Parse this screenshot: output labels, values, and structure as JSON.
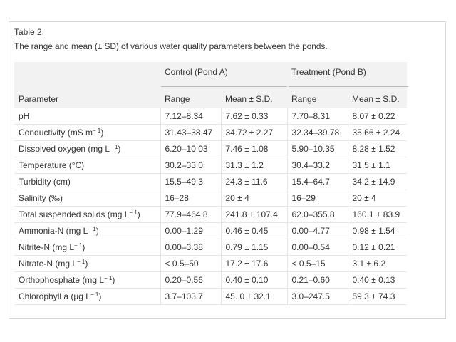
{
  "caption": {
    "label": "Table 2.",
    "text": "The range and mean (± SD) of various water quality parameters between the ponds."
  },
  "table": {
    "groups": [
      "Control (Pond A)",
      "Treatment (Pond B)"
    ],
    "columns": [
      "Parameter",
      "Range",
      "Mean ± S.D.",
      "Range",
      "Mean ± S.D."
    ],
    "rows": [
      {
        "param": "pH",
        "unit_sup": "",
        "unit_close": "",
        "a_range": "7.12–8.34",
        "a_mean": "7.62 ± 0.33",
        "b_range": "7.70–8.31",
        "b_mean": "8.07 ± 0.22"
      },
      {
        "param": "Conductivity (mS m",
        "unit_sup": "− 1",
        "unit_close": ")",
        "a_range": "31.43–38.47",
        "a_mean": "34.72 ± 2.27",
        "b_range": "32.34–39.78",
        "b_mean": "35.66 ± 2.24"
      },
      {
        "param": "Dissolved oxygen (mg L",
        "unit_sup": "− 1",
        "unit_close": ")",
        "a_range": "6.20–10.03",
        "a_mean": "7.46 ± 1.08",
        "b_range": "5.90–10.35",
        "b_mean": "8.28 ± 1.52"
      },
      {
        "param": "Temperature (°C)",
        "unit_sup": "",
        "unit_close": "",
        "a_range": "30.2–33.0",
        "a_mean": "31.3 ± 1.2",
        "b_range": "30.4–33.2",
        "b_mean": "31.5 ± 1.1"
      },
      {
        "param": "Turbidity (cm)",
        "unit_sup": "",
        "unit_close": "",
        "a_range": "15.5–49.3",
        "a_mean": "24.3 ± 11.6",
        "b_range": "15.4–64.7",
        "b_mean": "34.2 ± 14.9"
      },
      {
        "param": "Salinity (‰)",
        "unit_sup": "",
        "unit_close": "",
        "a_range": "16–28",
        "a_mean": "20 ± 4",
        "b_range": "16–29",
        "b_mean": "20 ± 4"
      },
      {
        "param": "Total suspended solids (mg L",
        "unit_sup": "− 1",
        "unit_close": ")",
        "a_range": "77.9–464.8",
        "a_mean": "241.8 ± 107.4",
        "b_range": "62.0–355.8",
        "b_mean": "160.1 ± 83.9"
      },
      {
        "param": "Ammonia-N (mg L",
        "unit_sup": "− 1",
        "unit_close": ")",
        "a_range": "0.00–1.29",
        "a_mean": "0.46 ± 0.45",
        "b_range": "0.00–4.77",
        "b_mean": "0.98 ± 1.54"
      },
      {
        "param": "Nitrite-N (mg L",
        "unit_sup": "− 1",
        "unit_close": ")",
        "a_range": "0.00–3.38",
        "a_mean": "0.79 ± 1.15",
        "b_range": "0.00–0.54",
        "b_mean": "0.12 ± 0.21"
      },
      {
        "param": "Nitrate-N (mg L",
        "unit_sup": "− 1",
        "unit_close": ")",
        "a_range": "< 0.5–50",
        "a_mean": "17.2 ± 17.6",
        "b_range": "< 0.5–15",
        "b_mean": "3.1 ± 6.2"
      },
      {
        "param": "Orthophosphate (mg L",
        "unit_sup": "− 1",
        "unit_close": ")",
        "a_range": "0.20–0.56",
        "a_mean": "0.40 ± 0.10",
        "b_range": "0.21–0.60",
        "b_mean": "0.40 ± 0.13"
      },
      {
        "param": "Chlorophyll a (µg L",
        "unit_sup": "− 1",
        "unit_close": ")",
        "a_range": "3.7–103.7",
        "a_mean": "45. 0 ± 32.1",
        "b_range": "3.0–247.5",
        "b_mean": "59.3 ± 74.3"
      }
    ]
  }
}
